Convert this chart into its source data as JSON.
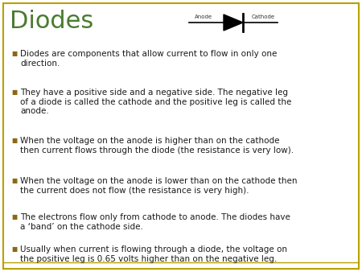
{
  "title": "Diodes",
  "title_color": "#4a7c2f",
  "title_fontsize": 22,
  "background_color": "#ffffff",
  "border_color": "#b8a000",
  "bullet_color": "#8b6914",
  "text_color": "#1a1a1a",
  "bullet_points": [
    "Diodes are components that allow current to flow in only one\ndirection.",
    "They have a positive side and a negative side. The negative leg\nof a diode is called the cathode and the positive leg is called the\nanode.",
    "When the voltage on the anode is higher than on the cathode\nthen current flows through the diode (the resistance is very low).",
    "When the voltage on the anode is lower than on the cathode then\nthe current does not flow (the resistance is very high).",
    "The electrons flow only from cathode to anode. The diodes have\na ‘band’ on the cathode side.",
    "Usually when current is flowing through a diode, the voltage on\nthe positive leg is 0.65 volts higher than on the negative leg."
  ],
  "anode_label": "Anode",
  "cathode_label": "Cathode",
  "text_fontsize": 7.5,
  "bullet_fontsize": 7.5,
  "label_fontsize": 5.0
}
